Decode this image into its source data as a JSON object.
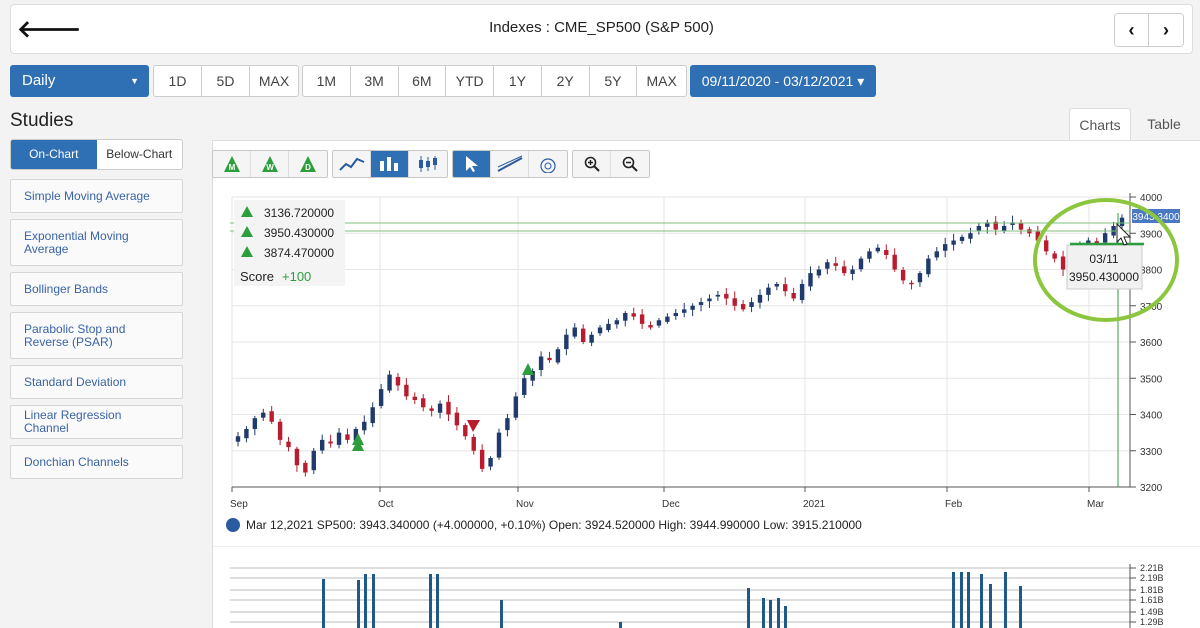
{
  "header": {
    "title": "Indexes : CME_SP500 (S&P 500)",
    "back_glyph": "🡐",
    "prev_glyph": "‹",
    "next_glyph": "›"
  },
  "interval": {
    "label": "Daily"
  },
  "range_group_1": [
    "1D",
    "5D",
    "MAX"
  ],
  "range_group_2": [
    "1M",
    "3M",
    "6M",
    "YTD",
    "1Y",
    "2Y",
    "5Y",
    "MAX"
  ],
  "date_range": "09/11/2020 - 03/12/2021 ▾",
  "studies": {
    "title": "Studies",
    "tabs": [
      "On-Chart",
      "Below-Chart"
    ],
    "items": [
      "Simple Moving Average",
      "Exponential Moving Average",
      "Bollinger Bands",
      "Parabolic Stop and Reverse (PSAR)",
      "Standard Deviation",
      "Linear Regression Channel",
      "Donchian Channels"
    ]
  },
  "view_tabs": [
    "Charts",
    "Table"
  ],
  "toolbar": {
    "icons": [
      "monthly-signal-icon",
      "weekly-signal-icon",
      "daily-signal-icon",
      "line-chart-icon",
      "bar-chart-icon",
      "candlestick-icon",
      "cursor-icon",
      "trendline-icon",
      "fibonacci-icon",
      "zoom-in-icon",
      "zoom-out-icon"
    ],
    "signal_letters": [
      "M",
      "W",
      "D"
    ]
  },
  "legend": {
    "rows": [
      {
        "letter": "M",
        "value": "3136.720000"
      },
      {
        "letter": "W",
        "value": "3950.430000"
      },
      {
        "letter": "D",
        "value": "3874.470000"
      }
    ],
    "score_label": "Score",
    "score_value": "+100"
  },
  "tooltip": {
    "date": "03/11",
    "value": "3950.430000"
  },
  "price_tag": "3943.3400",
  "info_line": "Mar 12,2021 SP500: 3943.340000 (+4.000000, +0.10%) Open: 3924.520000 High: 3944.990000 Low: 3915.210000",
  "chart_data": {
    "type": "candlestick",
    "x_ticks": [
      "Sep",
      "Oct",
      "Nov",
      "Dec",
      "2021",
      "Feb",
      "Mar"
    ],
    "y_ticks": [
      3200,
      3300,
      3400,
      3500,
      3600,
      3700,
      3800,
      3900,
      4000
    ],
    "ylim": [
      3200,
      4000
    ],
    "closes": [
      3340,
      3360,
      3390,
      3405,
      3380,
      3330,
      3310,
      3260,
      3240,
      3300,
      3330,
      3320,
      3350,
      3330,
      3360,
      3380,
      3420,
      3470,
      3510,
      3480,
      3450,
      3440,
      3420,
      3410,
      3430,
      3400,
      3370,
      3340,
      3300,
      3250,
      3280,
      3350,
      3390,
      3450,
      3500,
      3520,
      3560,
      3550,
      3580,
      3620,
      3640,
      3600,
      3620,
      3640,
      3650,
      3660,
      3680,
      3670,
      3650,
      3640,
      3660,
      3670,
      3680,
      3690,
      3700,
      3710,
      3720,
      3730,
      3720,
      3700,
      3690,
      3710,
      3730,
      3750,
      3760,
      3740,
      3720,
      3760,
      3790,
      3800,
      3820,
      3810,
      3790,
      3800,
      3830,
      3850,
      3860,
      3840,
      3800,
      3770,
      3760,
      3790,
      3830,
      3850,
      3870,
      3880,
      3890,
      3900,
      3920,
      3930,
      3910,
      3920,
      3930,
      3910,
      3900,
      3880,
      3850,
      3830,
      3800,
      3820,
      3860,
      3880,
      3870,
      3900,
      3920,
      3943
    ],
    "volume_ticks": [
      "2.21B",
      "2.19B",
      "1.81B",
      "1.61B",
      "1.49B",
      "1.29B"
    ],
    "colors": {
      "up": "#1f3a6b",
      "down": "#b81c2e",
      "signal": "#2c9e3c",
      "highlight": "#8cc63f"
    }
  }
}
